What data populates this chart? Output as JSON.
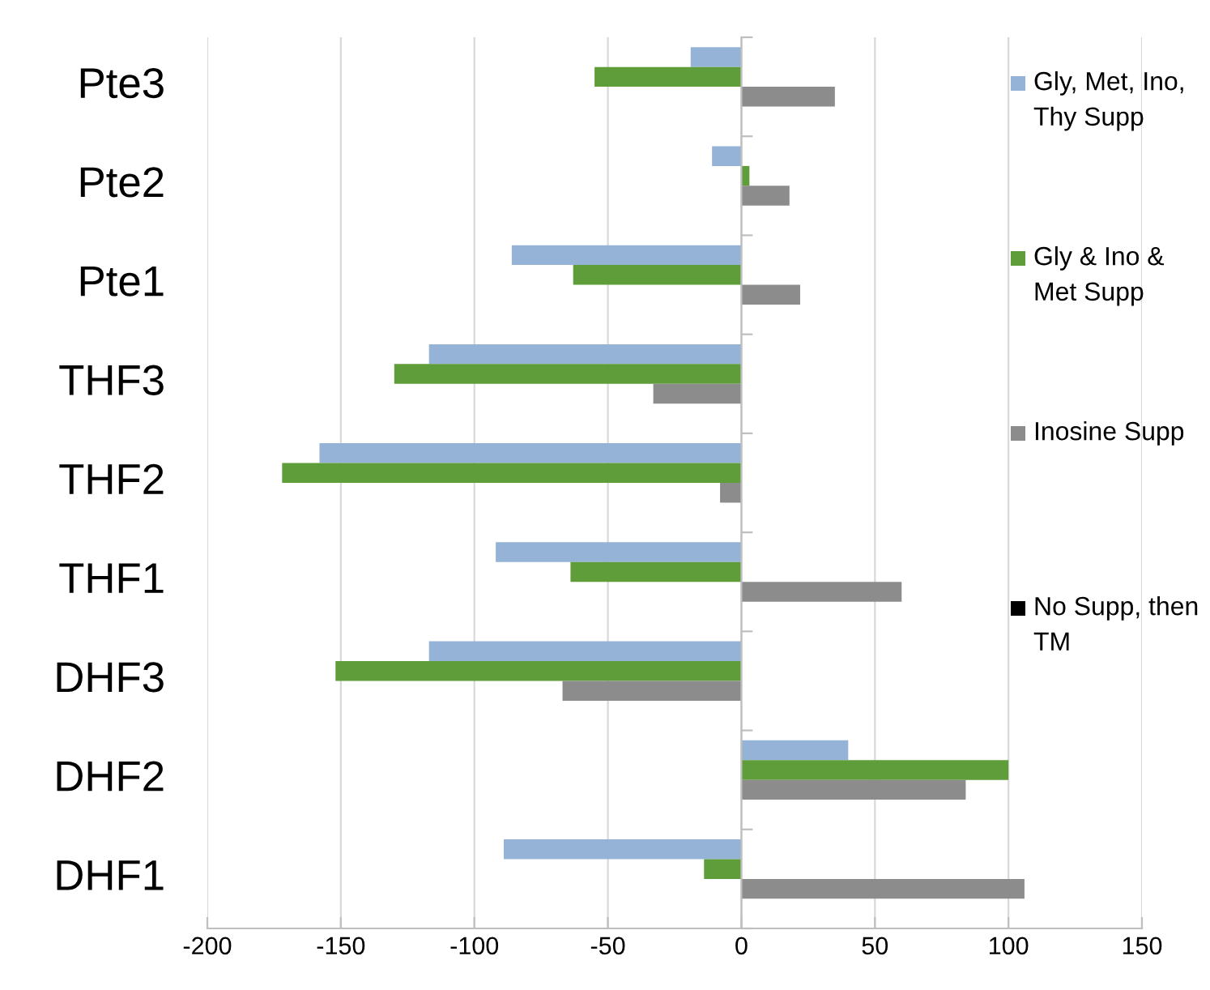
{
  "chart_data": {
    "type": "bar",
    "orientation": "horizontal",
    "categories": [
      "Pte3",
      "Pte2",
      "Pte1",
      "THF3",
      "THF2",
      "THF1",
      "DHF3",
      "DHF2",
      "DHF1"
    ],
    "series": [
      {
        "name": "Gly, Met, Ino, Thy Supp",
        "color": "#95b3d7",
        "values": [
          -19,
          -11,
          -86,
          -117,
          -158,
          -92,
          -117,
          40,
          -89
        ]
      },
      {
        "name": "Gly & Ino & Met Supp",
        "color": "#5f9d3a",
        "values": [
          -55,
          3,
          -63,
          -130,
          -172,
          -64,
          -152,
          100,
          -14
        ]
      },
      {
        "name": "Inosine Supp",
        "color": "#8c8c8c",
        "values": [
          35,
          18,
          22,
          -33,
          -8,
          60,
          -67,
          84,
          106
        ]
      },
      {
        "name": "No Supp, then TM",
        "color": "#000000",
        "values": [
          null,
          null,
          null,
          null,
          null,
          null,
          null,
          null,
          null
        ]
      }
    ],
    "xlim": [
      -200,
      150
    ],
    "xticks": [
      -200,
      -150,
      -100,
      -50,
      0,
      50,
      100,
      150
    ],
    "grid": "x",
    "legend": "right"
  }
}
